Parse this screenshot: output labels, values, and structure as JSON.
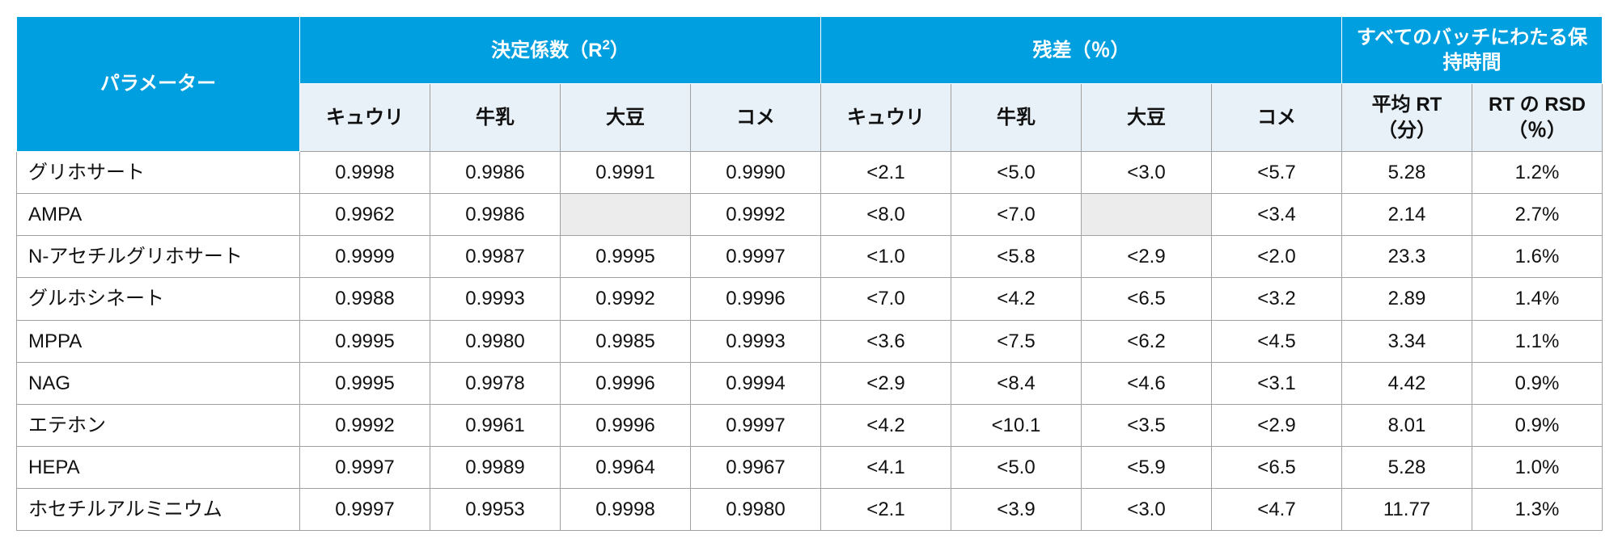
{
  "table": {
    "type": "table",
    "colors": {
      "header_bg": "#009fdf",
      "header_text": "#ffffff",
      "subheader_bg": "#e8f1f8",
      "subheader_text": "#111111",
      "cell_text": "#111111",
      "blank_bg": "#ececec",
      "border": "#a0a0a0",
      "header_border": "#ffffff"
    },
    "fonts": {
      "header_size_pt": 18,
      "cell_size_pt": 18
    },
    "headers": {
      "parameter": "パラメーター",
      "group1": "決定係数（R²）",
      "group2": "残差（％）",
      "group3": "すべてのバッチにわたる保持時間",
      "sub": {
        "cucumber": "キュウリ",
        "milk": "牛乳",
        "soybean": "大豆",
        "rice": "コメ",
        "avg_rt": "平均 RT（分）",
        "rsd_rt": "RT の RSD（％）"
      }
    },
    "columns": [
      "param",
      "r2_cuc",
      "r2_milk",
      "r2_soy",
      "r2_rice",
      "res_cuc",
      "res_milk",
      "res_soy",
      "res_rice",
      "avg_rt",
      "rsd_rt"
    ],
    "rows": [
      {
        "param": "グリホサート",
        "r2_cuc": "0.9998",
        "r2_milk": "0.9986",
        "r2_soy": "0.9991",
        "r2_rice": "0.9990",
        "res_cuc": "<2.1",
        "res_milk": "<5.0",
        "res_soy": "<3.0",
        "res_rice": "<5.7",
        "avg_rt": "5.28",
        "rsd_rt": "1.2%"
      },
      {
        "param": "AMPA",
        "r2_cuc": "0.9962",
        "r2_milk": "0.9986",
        "r2_soy": "",
        "r2_rice": "0.9992",
        "res_cuc": "<8.0",
        "res_milk": "<7.0",
        "res_soy": "",
        "res_rice": "<3.4",
        "avg_rt": "2.14",
        "rsd_rt": "2.7%"
      },
      {
        "param": "N-アセチルグリホサート",
        "r2_cuc": "0.9999",
        "r2_milk": "0.9987",
        "r2_soy": "0.9995",
        "r2_rice": "0.9997",
        "res_cuc": "<1.0",
        "res_milk": "<5.8",
        "res_soy": "<2.9",
        "res_rice": "<2.0",
        "avg_rt": "23.3",
        "rsd_rt": "1.6%"
      },
      {
        "param": "グルホシネート",
        "r2_cuc": "0.9988",
        "r2_milk": "0.9993",
        "r2_soy": "0.9992",
        "r2_rice": "0.9996",
        "res_cuc": "<7.0",
        "res_milk": "<4.2",
        "res_soy": "<6.5",
        "res_rice": "<3.2",
        "avg_rt": "2.89",
        "rsd_rt": "1.4%"
      },
      {
        "param": "MPPA",
        "r2_cuc": "0.9995",
        "r2_milk": "0.9980",
        "r2_soy": "0.9985",
        "r2_rice": "0.9993",
        "res_cuc": "<3.6",
        "res_milk": "<7.5",
        "res_soy": "<6.2",
        "res_rice": "<4.5",
        "avg_rt": "3.34",
        "rsd_rt": "1.1%"
      },
      {
        "param": "NAG",
        "r2_cuc": "0.9995",
        "r2_milk": "0.9978",
        "r2_soy": "0.9996",
        "r2_rice": "0.9994",
        "res_cuc": "<2.9",
        "res_milk": "<8.4",
        "res_soy": "<4.6",
        "res_rice": "<3.1",
        "avg_rt": "4.42",
        "rsd_rt": "0.9%"
      },
      {
        "param": "エテホン",
        "r2_cuc": "0.9992",
        "r2_milk": "0.9961",
        "r2_soy": "0.9996",
        "r2_rice": "0.9997",
        "res_cuc": "<4.2",
        "res_milk": "<10.1",
        "res_soy": "<3.5",
        "res_rice": "<2.9",
        "avg_rt": "8.01",
        "rsd_rt": "0.9%"
      },
      {
        "param": "HEPA",
        "r2_cuc": "0.9997",
        "r2_milk": "0.9989",
        "r2_soy": "0.9964",
        "r2_rice": "0.9967",
        "res_cuc": "<4.1",
        "res_milk": "<5.0",
        "res_soy": "<5.9",
        "res_rice": "<6.5",
        "avg_rt": "5.28",
        "rsd_rt": "1.0%"
      },
      {
        "param": "ホセチルアルミニウム",
        "r2_cuc": "0.9997",
        "r2_milk": "0.9953",
        "r2_soy": "0.9998",
        "r2_rice": "0.9980",
        "res_cuc": "<2.1",
        "res_milk": "<3.9",
        "res_soy": "<3.0",
        "res_rice": "<4.7",
        "avg_rt": "11.77",
        "rsd_rt": "1.3%"
      }
    ]
  }
}
